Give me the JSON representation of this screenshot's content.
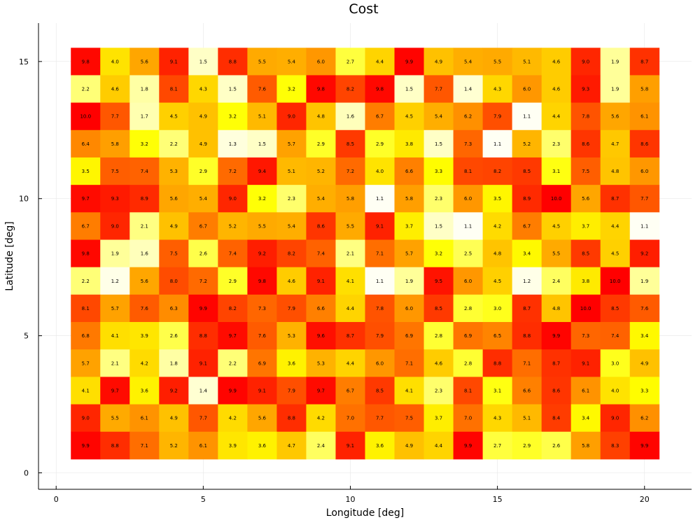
{
  "chart_data": {
    "type": "heatmap",
    "title": "Cost",
    "xlabel": "Longitude [deg]",
    "ylabel": "Latitude [deg]",
    "x": [
      1,
      2,
      3,
      4,
      5,
      6,
      7,
      8,
      9,
      10,
      11,
      12,
      13,
      14,
      15,
      16,
      17,
      18,
      19,
      20
    ],
    "y": [
      15,
      14,
      13,
      12,
      11,
      10,
      9,
      8,
      7,
      6,
      5,
      4,
      3,
      2,
      1
    ],
    "xlim": [
      -0.6,
      21.6
    ],
    "ylim": [
      -0.6,
      16.4
    ],
    "xticks": [
      0,
      5,
      10,
      15,
      20
    ],
    "yticks": [
      0,
      5,
      10,
      15
    ],
    "xtick_labels": [
      "0",
      "5",
      "10",
      "15",
      "20"
    ],
    "ytick_labels": [
      "0",
      "5",
      "10",
      "15"
    ],
    "grid": true,
    "colormap": "hot",
    "value_range": [
      1,
      10
    ],
    "values": [
      [
        9.8,
        4.0,
        5.6,
        9.1,
        1.5,
        8.8,
        5.5,
        5.4,
        6.0,
        2.7,
        4.4,
        9.9,
        4.9,
        5.4,
        5.5,
        5.1,
        4.6,
        9.0,
        1.9,
        8.7
      ],
      [
        2.2,
        4.6,
        1.8,
        8.1,
        4.3,
        1.5,
        7.6,
        3.2,
        9.8,
        8.2,
        9.8,
        1.5,
        7.7,
        1.4,
        4.3,
        6.0,
        4.6,
        9.3,
        1.9,
        5.8
      ],
      [
        10.0,
        7.7,
        1.7,
        4.5,
        4.9,
        3.2,
        5.1,
        9.0,
        4.8,
        1.6,
        6.7,
        4.5,
        5.4,
        6.2,
        7.9,
        1.1,
        4.4,
        7.8,
        5.6,
        6.1
      ],
      [
        6.4,
        5.8,
        3.2,
        2.2,
        4.9,
        1.3,
        1.5,
        5.7,
        2.9,
        8.5,
        2.9,
        3.8,
        1.5,
        7.3,
        1.1,
        5.2,
        2.3,
        8.6,
        4.7,
        8.6
      ],
      [
        3.5,
        7.5,
        7.4,
        5.3,
        2.9,
        7.2,
        9.4,
        5.1,
        5.2,
        7.2,
        4.0,
        6.6,
        3.3,
        8.1,
        8.2,
        8.5,
        3.1,
        7.5,
        4.8,
        6.0
      ],
      [
        9.7,
        9.3,
        8.9,
        5.6,
        5.4,
        9.0,
        3.2,
        2.3,
        5.4,
        5.8,
        1.1,
        5.8,
        2.3,
        6.0,
        3.5,
        8.9,
        10.0,
        5.6,
        8.7,
        7.7
      ],
      [
        6.7,
        9.0,
        2.1,
        4.9,
        6.7,
        5.2,
        5.5,
        5.4,
        8.6,
        5.5,
        9.1,
        3.7,
        1.5,
        1.1,
        4.2,
        6.7,
        4.5,
        3.7,
        4.4,
        1.1
      ],
      [
        9.8,
        1.9,
        1.6,
        7.5,
        2.6,
        7.4,
        9.2,
        8.2,
        7.4,
        2.1,
        7.1,
        5.7,
        3.2,
        2.5,
        4.8,
        3.4,
        5.5,
        8.5,
        4.5,
        9.2
      ],
      [
        2.2,
        1.2,
        5.6,
        8.0,
        7.2,
        2.9,
        9.8,
        4.6,
        9.1,
        4.1,
        1.1,
        1.9,
        9.5,
        6.0,
        4.5,
        1.2,
        2.4,
        3.8,
        10.0,
        1.9
      ],
      [
        8.1,
        5.7,
        7.6,
        6.3,
        9.9,
        8.2,
        7.3,
        7.9,
        6.6,
        4.4,
        7.8,
        6.0,
        8.5,
        2.8,
        3.0,
        8.7,
        4.8,
        10.0,
        8.5,
        7.6
      ],
      [
        6.8,
        4.1,
        3.9,
        2.6,
        8.8,
        9.7,
        7.6,
        5.3,
        9.6,
        8.7,
        7.9,
        6.9,
        2.8,
        6.9,
        6.5,
        8.8,
        9.9,
        7.3,
        7.4,
        3.4
      ],
      [
        5.7,
        2.1,
        4.2,
        1.8,
        9.1,
        2.2,
        6.9,
        3.6,
        5.3,
        4.4,
        6.0,
        7.1,
        4.6,
        2.8,
        8.8,
        7.1,
        8.7,
        9.1,
        3.0,
        4.9
      ],
      [
        4.1,
        9.7,
        3.6,
        9.2,
        1.4,
        9.9,
        9.1,
        7.9,
        9.7,
        6.7,
        8.5,
        4.1,
        2.3,
        8.1,
        3.1,
        6.6,
        8.6,
        6.1,
        4.0,
        3.3
      ],
      [
        9.0,
        5.5,
        6.1,
        4.9,
        7.7,
        4.2,
        5.6,
        8.8,
        4.2,
        7.0,
        7.7,
        7.5,
        3.7,
        7.0,
        4.3,
        5.1,
        8.4,
        3.4,
        9.0,
        6.2
      ],
      [
        9.9,
        8.8,
        7.1,
        5.2,
        6.1,
        3.9,
        3.6,
        4.7,
        2.4,
        9.1,
        3.6,
        4.9,
        4.4,
        9.9,
        2.7,
        2.9,
        2.6,
        5.8,
        8.3,
        9.9
      ]
    ]
  }
}
